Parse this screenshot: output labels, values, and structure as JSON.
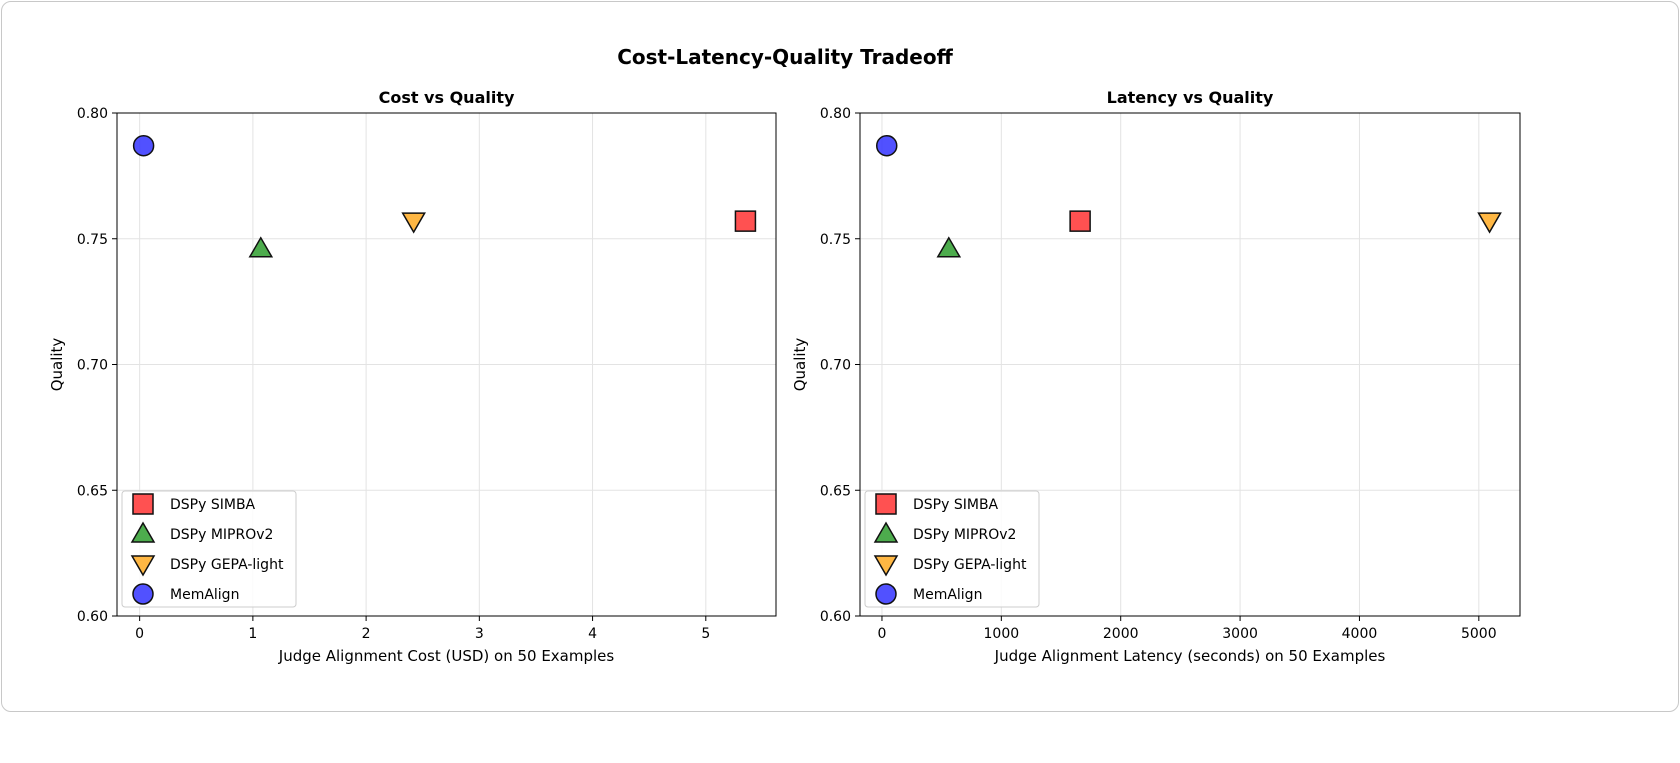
{
  "figure_title": "Cost-Latency-Quality Tradeoff",
  "chart_data": [
    {
      "type": "scatter",
      "title": "Cost vs Quality",
      "xlabel": "Judge Alignment Cost (USD) on 50 Examples",
      "ylabel": "Quality",
      "xlim": [
        -0.2,
        5.62
      ],
      "ylim": [
        0.6,
        0.8
      ],
      "xticks": [
        0,
        1,
        2,
        3,
        4,
        5
      ],
      "xtick_labels": [
        "0",
        "1",
        "2",
        "3",
        "4",
        "5"
      ],
      "yticks": [
        0.6,
        0.65,
        0.7,
        0.75,
        0.8
      ],
      "ytick_labels": [
        "0.60",
        "0.65",
        "0.70",
        "0.75",
        "0.80"
      ],
      "grid": true,
      "legend_position": "lower-left",
      "series": [
        {
          "name": "DSPy SIMBA",
          "marker": "square",
          "color": "#ff3333",
          "x": [
            5.35
          ],
          "y": [
            0.757
          ]
        },
        {
          "name": "DSPy MIPROv2",
          "marker": "triangle-up",
          "color": "#2e9e2e",
          "x": [
            1.07
          ],
          "y": [
            0.746
          ]
        },
        {
          "name": "DSPy GEPA-light",
          "marker": "triangle-down",
          "color": "#ffaa22",
          "x": [
            2.42
          ],
          "y": [
            0.757
          ]
        },
        {
          "name": "MemAlign",
          "marker": "circle",
          "color": "#3333ff",
          "x": [
            0.035
          ],
          "y": [
            0.787
          ]
        }
      ]
    },
    {
      "type": "scatter",
      "title": "Latency vs Quality",
      "xlabel": "Judge Alignment Latency (seconds) on 50 Examples",
      "ylabel": "Quality",
      "xlim": [
        -184,
        5345
      ],
      "ylim": [
        0.6,
        0.8
      ],
      "xticks": [
        0,
        1000,
        2000,
        3000,
        4000,
        5000
      ],
      "xtick_labels": [
        "0",
        "1000",
        "2000",
        "3000",
        "4000",
        "5000"
      ],
      "yticks": [
        0.6,
        0.65,
        0.7,
        0.75,
        0.8
      ],
      "ytick_labels": [
        "0.60",
        "0.65",
        "0.70",
        "0.75",
        "0.80"
      ],
      "grid": true,
      "legend_position": "lower-left",
      "series": [
        {
          "name": "DSPy SIMBA",
          "marker": "square",
          "color": "#ff3333",
          "x": [
            1660
          ],
          "y": [
            0.757
          ]
        },
        {
          "name": "DSPy MIPROv2",
          "marker": "triangle-up",
          "color": "#2e9e2e",
          "x": [
            560
          ],
          "y": [
            0.746
          ]
        },
        {
          "name": "DSPy GEPA-light",
          "marker": "triangle-down",
          "color": "#ffaa22",
          "x": [
            5090
          ],
          "y": [
            0.757
          ]
        },
        {
          "name": "MemAlign",
          "marker": "circle",
          "color": "#3333ff",
          "x": [
            40
          ],
          "y": [
            0.787
          ]
        }
      ]
    }
  ]
}
